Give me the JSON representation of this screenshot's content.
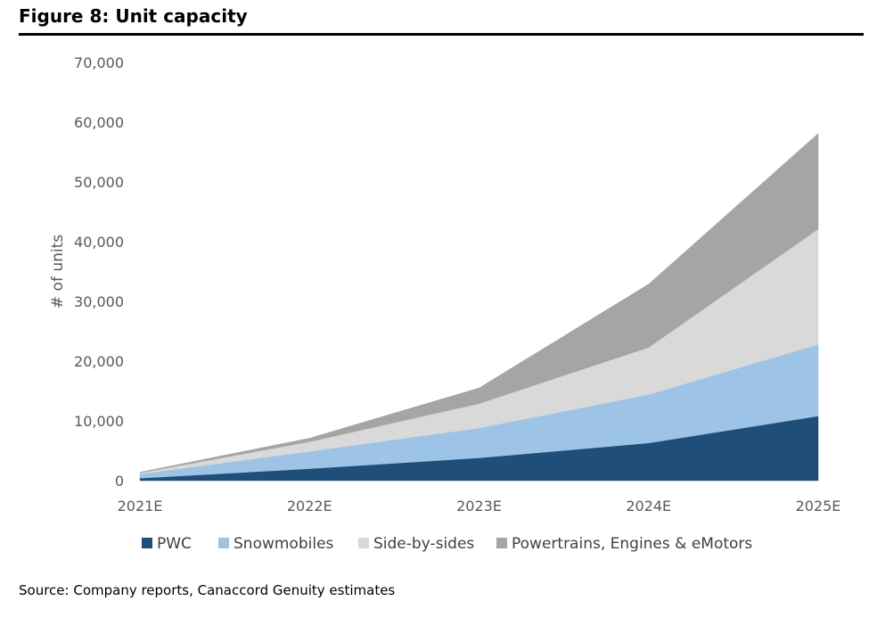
{
  "chart_data": {
    "type": "area",
    "stacked": true,
    "title": "Figure 8: Unit capacity",
    "ylabel": "# of units",
    "xlabel": "",
    "categories": [
      "2021E",
      "2022E",
      "2023E",
      "2024E",
      "2025E"
    ],
    "ylim": [
      0,
      70000
    ],
    "yticks": [
      0,
      10000,
      20000,
      30000,
      40000,
      50000,
      60000,
      70000
    ],
    "ytick_labels": [
      "0",
      "10,000",
      "20,000",
      "30,000",
      "40,000",
      "50,000",
      "60,000",
      "70,000"
    ],
    "grid": false,
    "legend": "bottom",
    "series": [
      {
        "name": "PWC",
        "color": "#1f4e79",
        "values": [
          400,
          2000,
          3800,
          6300,
          10800
        ]
      },
      {
        "name": "Snowmobiles",
        "color": "#9dc3e6",
        "values": [
          700,
          2900,
          5000,
          8100,
          12000
        ]
      },
      {
        "name": "Side-by-sides",
        "color": "#d9d9d9",
        "values": [
          200,
          1600,
          4100,
          7900,
          19300
        ]
      },
      {
        "name": "Powertrains, Engines & eMotors",
        "color": "#a5a5a5",
        "values": [
          100,
          600,
          2600,
          10600,
          16000
        ]
      }
    ]
  },
  "source": "Source: Company reports, Canaccord Genuity estimates"
}
